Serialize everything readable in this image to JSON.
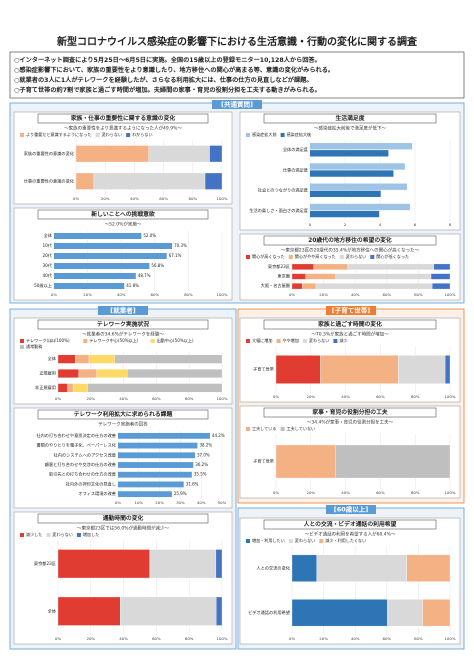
{
  "header": {
    "title": "新型コロナウイルス感染症の影響下における生活意識・行動の変化に関する調査"
  },
  "bullets": [
    "○インターネット調査により5月25日～6月5日に実施。全国の15歳以上の登録モニター10,128人から回答。",
    "○感染症影響下において、家族の重要性をより意識したり、地方移住への関心が高まる等、意識の変化がみられる。",
    "○就業者の3人に1人がテレワークを経験したが、さらなる利用拡大には、仕事の仕方の見直しなどが課題。",
    "○子育て世帯の約7割で家族と過ごす時間が増加。夫婦間の家事・育児の役割分担を工夫する動きがみられる。"
  ],
  "sections": [
    "[共通質問]",
    "[就業者]",
    "[子育て世帯]",
    "[60歳以上]"
  ],
  "chart_data": [
    {
      "type": "stacked",
      "title": "家族・仕事の重要性に関する意識の変化",
      "subtitle": "～家族の重要性をより意識するようになった人が49.9%～",
      "categories": [
        "家族の重要性の意識の変化",
        "仕事の重要性の意識の変化"
      ],
      "series": [
        {
          "name": "より重要だと意識するようになった",
          "color": "#f4b183",
          "values": [
            49.9,
            12.3
          ]
        },
        {
          "name": "変わらない",
          "color": "#d9d9d9",
          "values": [
            41.6,
            76.1
          ]
        },
        {
          "name": "わからない",
          "color": "#4472c4",
          "values": [
            8.5,
            11.6
          ]
        }
      ],
      "xlim": [
        0,
        100
      ],
      "xticks": [
        {
          "value": 0,
          "label": "0%"
        },
        {
          "value": 20,
          "label": "20%"
        },
        {
          "value": 40,
          "label": "40%"
        },
        {
          "value": 60,
          "label": "60%"
        },
        {
          "value": 80,
          "label": "80%"
        },
        {
          "value": 100,
          "label": "100%"
        }
      ]
    },
    {
      "type": "hbar",
      "title": "新しいことへの挑戦意欲",
      "subtitle": "～52.0%が実施～",
      "categories": [
        "全体",
        "10代",
        "20代",
        "30代",
        "40代",
        "50歳以上"
      ],
      "values": [
        52.0,
        70.3,
        67.1,
        56.8,
        48.7,
        41.8
      ],
      "value_labels": [
        "52.0%",
        "70.3%",
        "67.1%",
        "56.8%",
        "48.7%",
        "41.8%"
      ],
      "color": "#5b9bd5",
      "xlim": [
        0,
        100
      ],
      "xticks": [
        {
          "value": 0,
          "label": "0%"
        },
        {
          "value": 20,
          "label": "20%"
        },
        {
          "value": 40,
          "label": "40%"
        },
        {
          "value": 60,
          "label": "60%"
        },
        {
          "value": 80,
          "label": "80%"
        },
        {
          "value": 100,
          "label": "100%"
        }
      ]
    },
    {
      "type": "bar",
      "title": "生活満足度",
      "subtitle": "～感染症拡大前後で満足度が低下～",
      "categories": [
        "全体の満足度",
        "仕事の満足度",
        "社会とのつながりの満足度",
        "生活の楽しさ・面白さの満足度"
      ],
      "series": [
        {
          "name": "感染症拡大前",
          "color": "#9dc3e6",
          "values": [
            5.84,
            5.42,
            5.54,
            5.71
          ]
        },
        {
          "name": "感染症拡大後",
          "color": "#2e75b6",
          "values": [
            4.48,
            4.77,
            4.04,
            3.95
          ]
        }
      ],
      "xlim": [
        0,
        8
      ],
      "xticks": [
        0,
        2,
        4,
        6,
        8
      ]
    },
    {
      "type": "stacked",
      "title": "20歳代の地方移住の希望の変化",
      "subtitle": "～東京都23区の20歳代の35.4%が地方移住への関心が高くなった～",
      "categories": [
        "東京都23区",
        "東京圏",
        "大阪・名古屋圏"
      ],
      "series": [
        {
          "name": "関心が高くなった",
          "color": "#e03c31",
          "values": [
            13.8,
            8.7,
            6.6
          ]
        },
        {
          "name": "関心がやや高くなった",
          "color": "#f4b183",
          "values": [
            21.6,
            19.0,
            8.6
          ]
        },
        {
          "name": "変わらない",
          "color": "#d9d9d9",
          "values": [
            54.4,
            60.3,
            73.5
          ]
        },
        {
          "name": "関心が低くなった",
          "color": "#4472c4",
          "values": [
            10.2,
            12.0,
            11.3
          ]
        }
      ],
      "xlim": [
        0,
        100
      ],
      "xticks": [
        {
          "value": 0,
          "label": "0%"
        },
        {
          "value": 20,
          "label": "20%"
        },
        {
          "value": 40,
          "label": "40%"
        },
        {
          "value": 60,
          "label": "60%"
        },
        {
          "value": 80,
          "label": "80%"
        },
        {
          "value": 100,
          "label": "100%"
        }
      ]
    },
    {
      "type": "stacked",
      "title": "テレワーク実施状況",
      "subtitle": "～就業者の34.6%がテレワークを経験～",
      "categories": [
        "全体",
        "正規雇用",
        "非正規雇用"
      ],
      "series": [
        {
          "name": "テレワーク(ほぼ100%)",
          "color": "#e03c31",
          "values": [
            10.5,
            12.7,
            5.8
          ]
        },
        {
          "name": "テレワーク中心(50%以上)",
          "color": "#f4b183",
          "values": [
            8.4,
            10.9,
            3.4
          ]
        },
        {
          "name": "出勤中心(50%以上)",
          "color": "#ffd966",
          "values": [
            15.7,
            18.6,
            8.8
          ]
        },
        {
          "name": "通常勤務",
          "color": "#bfbfbf",
          "values": [
            65.4,
            57.8,
            82.0
          ]
        }
      ],
      "xlim": [
        0,
        100
      ],
      "xticks": [
        {
          "value": 0,
          "label": "0%"
        },
        {
          "value": 20,
          "label": "20%"
        },
        {
          "value": 40,
          "label": "40%"
        },
        {
          "value": 60,
          "label": "60%"
        },
        {
          "value": 80,
          "label": "80%"
        },
        {
          "value": 100,
          "label": "100%"
        }
      ]
    },
    {
      "type": "hbar",
      "title": "テレワーク利用拡大に求められる課題",
      "subtitle": "テレワーク実施者の回答",
      "categories": [
        "社内の打ち合わせや意思決定の仕方の改善",
        "書類のやりとりを電子化、ペーパーレス化",
        "社内のシステムへのアクセス改善",
        "顧客と打ち合わせや交渉の仕方の改善",
        "取引先との打ち合わせの仕方の改善",
        "社内外の押印文化の見直し",
        "オフィス環境の改善"
      ],
      "values": [
        44.2,
        38.2,
        37.0,
        36.2,
        35.5,
        31.6,
        25.9
      ],
      "value_labels": [
        "44.2%",
        "38.2%",
        "37.0%",
        "36.2%",
        "35.5%",
        "31.6%",
        "25.9%"
      ],
      "color": "#5b9bd5",
      "xlim": [
        0,
        50
      ],
      "xticks": [
        {
          "value": 0,
          "label": "0%"
        },
        {
          "value": 10,
          "label": "10%"
        },
        {
          "value": 20,
          "label": "20%"
        },
        {
          "value": 30,
          "label": "30%"
        },
        {
          "value": 40,
          "label": "40%"
        },
        {
          "value": 50,
          "label": "50%"
        }
      ]
    },
    {
      "type": "stacked",
      "title": "通勤時間の変化",
      "subtitle": "～東京都23区では56.0%が通勤時間が減少～",
      "categories": [
        "東京都23区",
        "全体"
      ],
      "series": [
        {
          "name": "減少した",
          "color": "#e03c31",
          "values": [
            56.0,
            37.9
          ]
        },
        {
          "name": "変わらない",
          "color": "#d9d9d9",
          "values": [
            40.3,
            58.6
          ]
        },
        {
          "name": "増加した",
          "color": "#4472c4",
          "values": [
            3.7,
            3.5
          ]
        }
      ],
      "xlim": [
        0,
        100
      ],
      "xticks": [
        {
          "value": 0,
          "label": "0%"
        },
        {
          "value": 20,
          "label": "20%"
        },
        {
          "value": 40,
          "label": "40%"
        },
        {
          "value": 60,
          "label": "60%"
        },
        {
          "value": 80,
          "label": "80%"
        },
        {
          "value": 100,
          "label": "100%"
        }
      ]
    },
    {
      "type": "stacked",
      "title": "家族と過ごす時間の変化",
      "subtitle": "～70.3%が家族と過ごす時間が増加～",
      "categories": [
        "子育て世帯"
      ],
      "series": [
        {
          "name": "大幅に増加",
          "color": "#e03c31",
          "values": [
            25.5
          ]
        },
        {
          "name": "やや増加",
          "color": "#f4b183",
          "values": [
            44.8
          ]
        },
        {
          "name": "変わらない",
          "color": "#d9d9d9",
          "values": [
            26.9
          ]
        },
        {
          "name": "減少",
          "color": "#4472c4",
          "values": [
            2.8
          ]
        }
      ],
      "xlim": [
        0,
        100
      ],
      "xticks": [
        {
          "value": 0,
          "label": "0%"
        },
        {
          "value": 20,
          "label": "20%"
        },
        {
          "value": 40,
          "label": "40%"
        },
        {
          "value": 60,
          "label": "60%"
        },
        {
          "value": 80,
          "label": "80%"
        },
        {
          "value": 100,
          "label": "100%"
        }
      ]
    },
    {
      "type": "stacked",
      "title": "家事・育児の役割分担の工夫",
      "subtitle": "～34.4%が家事・育児の役割分担を工夫～",
      "categories": [
        "子育て世帯"
      ],
      "series": [
        {
          "name": "工夫している",
          "color": "#f4b183",
          "values": [
            34.4
          ]
        },
        {
          "name": "工夫していない",
          "color": "#bfbfbf",
          "values": [
            65.6
          ]
        }
      ],
      "xlim": [
        0,
        100
      ],
      "xticks": [
        {
          "value": 0,
          "label": "0%"
        },
        {
          "value": 20,
          "label": "20%"
        },
        {
          "value": 40,
          "label": "40%"
        },
        {
          "value": 60,
          "label": "60%"
        },
        {
          "value": 80,
          "label": "80%"
        },
        {
          "value": 100,
          "label": "100%"
        }
      ]
    },
    {
      "type": "stacked",
      "title": "人との交流・ビデオ通話の利用希望",
      "subtitle": "～ビデオ通話の利用を希望する人が60.4%～",
      "categories": [
        "人との交流の変化",
        "ビデオ通話の利用希望"
      ],
      "series": [
        {
          "name": "増加・利用したい",
          "color": "#2e75b6",
          "values": [
            15.7,
            60.4
          ]
        },
        {
          "name": "変わらない",
          "color": "#d9d9d9",
          "values": [
            57.0,
            22.3
          ]
        },
        {
          "name": "減少・利用したくない",
          "color": "#f4b183",
          "values": [
            27.3,
            17.3
          ]
        }
      ],
      "xlim": [
        0,
        100
      ],
      "xticks": [
        {
          "value": 0,
          "label": "0%"
        },
        {
          "value": 20,
          "label": "20%"
        },
        {
          "value": 40,
          "label": "40%"
        },
        {
          "value": 60,
          "label": "60%"
        },
        {
          "value": 80,
          "label": "80%"
        },
        {
          "value": 100,
          "label": "100%"
        }
      ]
    }
  ]
}
